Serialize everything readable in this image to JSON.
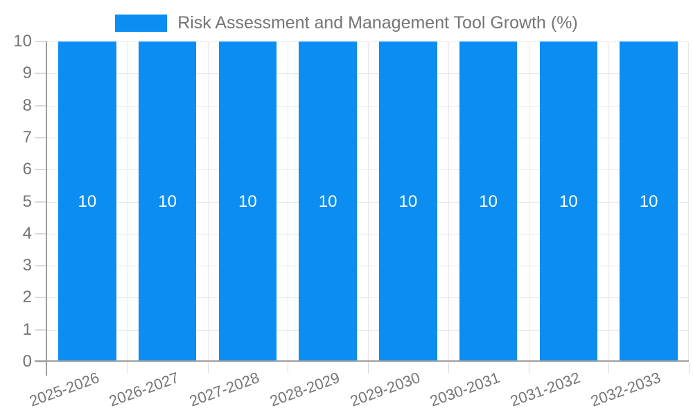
{
  "chart_data": {
    "type": "bar",
    "title": "Risk Assessment and Management Tool Growth (%)",
    "categories": [
      "2025-2026",
      "2026-2027",
      "2027-2028",
      "2028-2029",
      "2029-2030",
      "2030-2031",
      "2031-2032",
      "2032-2033"
    ],
    "series": [
      {
        "name": "Risk Assessment and Management Tool Growth (%)",
        "values": [
          10,
          10,
          10,
          10,
          10,
          10,
          10,
          10
        ]
      }
    ],
    "bar_value_labels": [
      "10",
      "10",
      "10",
      "10",
      "10",
      "10",
      "10",
      "10"
    ],
    "xlabel": "",
    "ylabel": "",
    "ylim": [
      0,
      10
    ],
    "yticks": [
      0,
      1,
      2,
      3,
      4,
      5,
      6,
      7,
      8,
      9,
      10
    ],
    "grid": true,
    "legend_position": "top-center",
    "bar_label_position": "inside-middle"
  },
  "style": {
    "bar_color": "#0b8df2",
    "bar_label_color": "#ffffff",
    "axis_line_color": "#9e9e9e",
    "tick_color": "#d9d9d9",
    "grid_color": "#e6e6e6",
    "axis_label_color": "#757575",
    "title_color": "#757575",
    "background_color": "#ffffff",
    "x_label_rotation_deg": -20
  }
}
